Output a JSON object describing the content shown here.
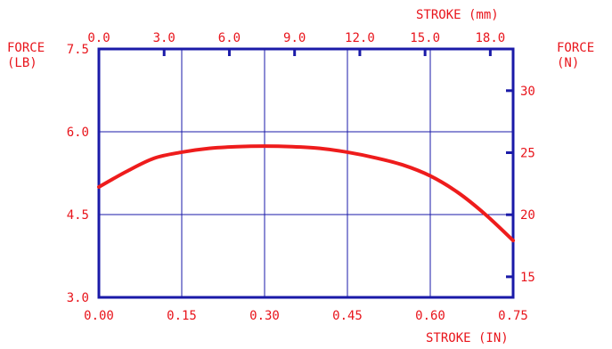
{
  "chart_data": {
    "type": "line",
    "x_axis_bottom": {
      "title": "STROKE (IN)",
      "range": [
        0.0,
        0.75
      ],
      "ticks": [
        0.0,
        0.15,
        0.3,
        0.45,
        0.6,
        0.75
      ],
      "tick_labels": [
        "0.00",
        "0.15",
        "0.30",
        "0.45",
        "0.60",
        "0.75"
      ]
    },
    "x_axis_top": {
      "title": "STROKE (mm)",
      "range": [
        0.0,
        19.05
      ],
      "ticks": [
        0.0,
        3.0,
        6.0,
        9.0,
        12.0,
        15.0,
        18.0
      ],
      "tick_labels": [
        "0.0",
        "3.0",
        "6.0",
        "9.0",
        "12.0",
        "15.0",
        "18.0"
      ]
    },
    "y_axis_left": {
      "title_line1": "FORCE",
      "title_line2": "(LB)",
      "range": [
        3.0,
        7.5
      ],
      "ticks": [
        3.0,
        4.5,
        6.0,
        7.5
      ],
      "tick_labels": [
        "3.0",
        "4.5",
        "6.0",
        "7.5"
      ]
    },
    "y_axis_right": {
      "title_line1": "FORCE",
      "title_line2": "(N)",
      "range": [
        13.34,
        33.36
      ],
      "ticks": [
        15,
        20,
        25,
        30
      ],
      "tick_labels": [
        "15",
        "20",
        "25",
        "30"
      ]
    },
    "grid": true,
    "series": [
      {
        "color": "#ee1c1c",
        "x": [
          0.0,
          0.05,
          0.1,
          0.15,
          0.2,
          0.25,
          0.3,
          0.35,
          0.4,
          0.45,
          0.5,
          0.55,
          0.6,
          0.65,
          0.7,
          0.75
        ],
        "y": [
          5.0,
          5.28,
          5.52,
          5.63,
          5.7,
          5.73,
          5.74,
          5.73,
          5.7,
          5.63,
          5.53,
          5.4,
          5.2,
          4.9,
          4.5,
          4.03
        ]
      }
    ]
  }
}
